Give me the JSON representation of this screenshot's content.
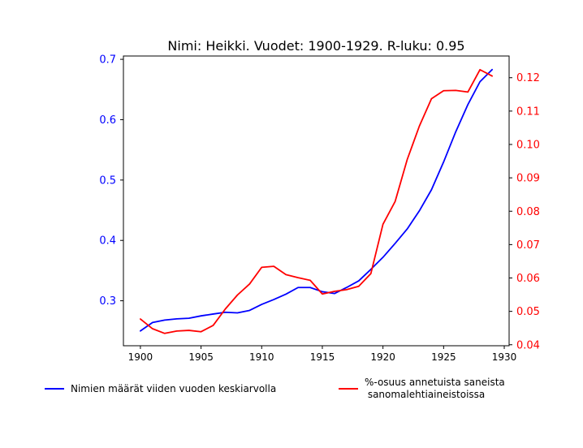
{
  "chart_data": {
    "type": "line",
    "title": "Nimi: Heikki. Vuodet: 1900-1929. R-luku: 0.95",
    "xlabel": "",
    "ylabel_left": "",
    "ylabel_right": "",
    "x": [
      1900,
      1901,
      1902,
      1903,
      1904,
      1905,
      1906,
      1907,
      1908,
      1909,
      1910,
      1911,
      1912,
      1913,
      1914,
      1915,
      1916,
      1917,
      1918,
      1919,
      1920,
      1921,
      1922,
      1923,
      1924,
      1925,
      1926,
      1927,
      1928,
      1929
    ],
    "xlim": [
      1898.6,
      1930.4
    ],
    "xticks": [
      1900,
      1905,
      1910,
      1915,
      1920,
      1925,
      1930
    ],
    "series": [
      {
        "name": "Nimien määrät viiden vuoden keskiarvolla",
        "axis": "left",
        "color": "#0000ff",
        "values": [
          0.25,
          0.264,
          0.268,
          0.27,
          0.271,
          0.275,
          0.278,
          0.281,
          0.28,
          0.284,
          0.294,
          0.302,
          0.311,
          0.322,
          0.322,
          0.315,
          0.312,
          0.322,
          0.333,
          0.352,
          0.372,
          0.395,
          0.419,
          0.449,
          0.484,
          0.53,
          0.58,
          0.625,
          0.663,
          0.683
        ]
      },
      {
        "name": "%-osuus annetuista saneista\n sanomalehtiaineistoissa",
        "axis": "right",
        "color": "#ff0000",
        "values": [
          0.0477,
          0.0448,
          0.0434,
          0.0441,
          0.0443,
          0.0439,
          0.0458,
          0.0507,
          0.0549,
          0.0582,
          0.0632,
          0.0635,
          0.061,
          0.0601,
          0.0593,
          0.0552,
          0.056,
          0.0565,
          0.0575,
          0.0613,
          0.0761,
          0.0829,
          0.0955,
          0.1055,
          0.1137,
          0.1161,
          0.1162,
          0.1157,
          0.1224,
          0.1205
        ]
      }
    ],
    "ylim_left": [
      0.2255,
      0.7055
    ],
    "yticks_left": [
      0.3,
      0.4,
      0.5,
      0.6,
      0.7
    ],
    "ylim_right": [
      0.0397,
      0.1265
    ],
    "yticks_right": [
      0.04,
      0.05,
      0.06,
      0.07,
      0.08,
      0.09,
      0.1,
      0.11,
      0.12
    ],
    "grid": false,
    "legend_placement": "below"
  }
}
